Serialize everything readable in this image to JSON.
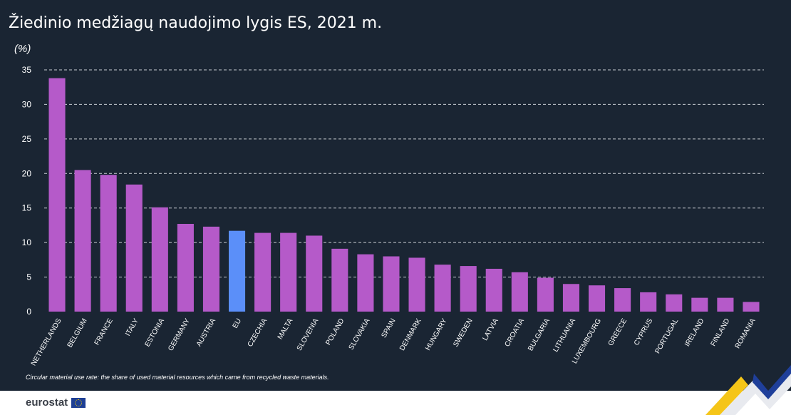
{
  "header": {
    "title": "Žiedinio medžiagų naudojimo lygis ES, 2021 m.",
    "unit": "(%)"
  },
  "footer": {
    "note": "Circular material use rate: the share of used material resources which came from recycled waste materials.",
    "brand": "eurostat"
  },
  "colors": {
    "background": "#1a2533",
    "bar": "#b55ac9",
    "highlight": "#5b8ff9",
    "grid": "#c8ccd2",
    "text": "#ffffff"
  },
  "chart_data": {
    "type": "bar",
    "title": "Žiedinio medžiagų naudojimo lygis ES, 2021 m.",
    "ylabel": "(%)",
    "xlabel": "",
    "ylim": [
      0,
      35
    ],
    "yticks": [
      0,
      5,
      10,
      15,
      20,
      25,
      30,
      35
    ],
    "grid": true,
    "highlight_category": "EU",
    "categories": [
      "NETHERLANDS",
      "BELGIUM",
      "FRANCE",
      "ITALY",
      "ESTONIA",
      "GERMANY",
      "AUSTRIA",
      "EU",
      "CZECHIA",
      "MALTA",
      "SLOVENIA",
      "POLAND",
      "SLOVAKIA",
      "SPAIN",
      "DENMARK",
      "HUNGARY",
      "SWEDEN",
      "LATVIA",
      "CROATIA",
      "BULGARIA",
      "LITHUANIA",
      "LUXEMBOURG",
      "GREECE",
      "CYPRUS",
      "PORTUGAL",
      "IRELAND",
      "FINLAND",
      "ROMANIA"
    ],
    "values": [
      33.8,
      20.5,
      19.8,
      18.4,
      15.1,
      12.7,
      12.3,
      11.7,
      11.4,
      11.4,
      11.0,
      9.1,
      8.3,
      8.0,
      7.8,
      6.8,
      6.6,
      6.2,
      5.7,
      4.9,
      4.0,
      3.8,
      3.4,
      2.8,
      2.5,
      2.0,
      2.0,
      1.4
    ]
  }
}
